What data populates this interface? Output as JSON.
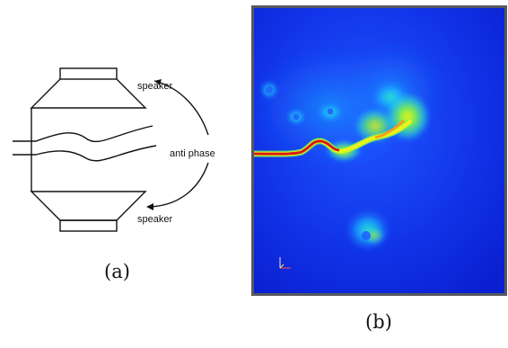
{
  "panel_a": {
    "caption": "(a)",
    "label_speaker_top": "speaker",
    "label_anti_phase": "anti phase",
    "label_speaker_bottom": "speaker"
  },
  "panel_b": {
    "caption": "(b)",
    "colormap": [
      "#0a1fd0",
      "#1f5dff",
      "#19b7ff",
      "#2fe7c8",
      "#7cf248",
      "#f0f21a",
      "#ff9a14",
      "#d71616"
    ],
    "frame_color": "#55585e"
  }
}
